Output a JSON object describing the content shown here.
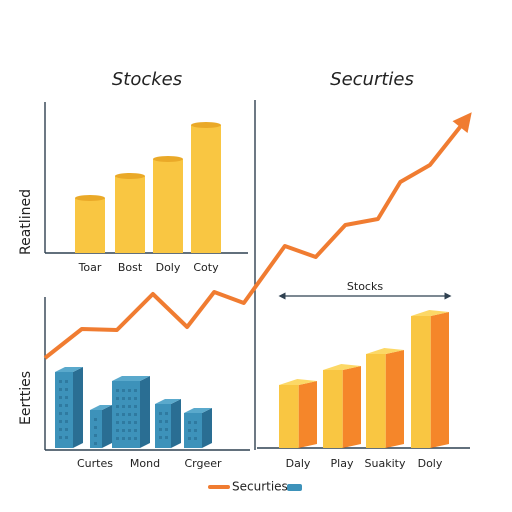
{
  "chart_data": [
    {
      "type": "bar",
      "title": "Stockes",
      "y_label": "Reatlined",
      "categories": [
        "Toar",
        "Bost",
        "Doly",
        "Coty"
      ],
      "values": [
        55,
        77,
        94,
        128
      ],
      "color": "#f9c642",
      "side_color": "#eaa928",
      "ylim": [
        0,
        150
      ]
    },
    {
      "type": "line",
      "title": "Securties",
      "x": [
        0,
        8.7,
        17,
        25.5,
        33.6,
        40,
        47,
        56.7,
        64,
        71,
        78.7,
        84,
        91,
        100
      ],
      "series": [
        {
          "name": "Securties",
          "color": "#f07c31",
          "values": [
            92,
            121,
            120,
            156,
            123,
            158,
            147,
            204,
            193,
            225,
            231,
            268,
            285,
            333
          ]
        }
      ],
      "xlim": [
        0,
        100
      ],
      "ylim": [
        0,
        400
      ]
    },
    {
      "type": "bar",
      "y_label": "Eertties",
      "categories": [
        "Curtes",
        null,
        "Mond",
        null,
        "Crgeer"
      ],
      "values": [
        76,
        38,
        67,
        44,
        35
      ],
      "color": "#3d92ba",
      "side_color": "#2a6e93",
      "ylim": [
        0,
        150
      ]
    },
    {
      "type": "bar",
      "annotation": "Stocks",
      "categories": [
        "Daly",
        "Play",
        "Suakity",
        "Doly"
      ],
      "values": [
        63,
        78,
        94,
        132
      ],
      "color": "#f9c642",
      "side_color": "#f5862a",
      "ylim": [
        0,
        150
      ]
    }
  ]
}
